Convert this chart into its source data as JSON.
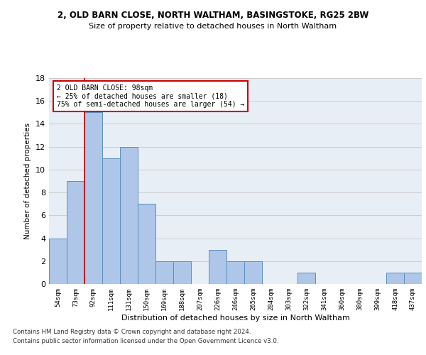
{
  "title": "2, OLD BARN CLOSE, NORTH WALTHAM, BASINGSTOKE, RG25 2BW",
  "subtitle": "Size of property relative to detached houses in North Waltham",
  "xlabel": "Distribution of detached houses by size in North Waltham",
  "ylabel": "Number of detached properties",
  "bar_labels": [
    "54sqm",
    "73sqm",
    "92sqm",
    "111sqm",
    "131sqm",
    "150sqm",
    "169sqm",
    "188sqm",
    "207sqm",
    "226sqm",
    "246sqm",
    "265sqm",
    "284sqm",
    "303sqm",
    "322sqm",
    "341sqm",
    "360sqm",
    "380sqm",
    "399sqm",
    "418sqm",
    "437sqm"
  ],
  "bar_values": [
    4,
    9,
    15,
    11,
    12,
    7,
    2,
    2,
    0,
    3,
    2,
    2,
    0,
    0,
    1,
    0,
    0,
    0,
    0,
    1,
    1
  ],
  "bar_color": "#aec6e8",
  "bar_edgecolor": "#5a8fc2",
  "vline_x": 1.5,
  "annotation_title": "2 OLD BARN CLOSE: 98sqm",
  "annotation_line1": "← 25% of detached houses are smaller (18)",
  "annotation_line2": "75% of semi-detached houses are larger (54) →",
  "annotation_box_color": "#ffffff",
  "annotation_box_edgecolor": "#cc0000",
  "vline_color": "#cc0000",
  "ylim": [
    0,
    18
  ],
  "yticks": [
    0,
    2,
    4,
    6,
    8,
    10,
    12,
    14,
    16,
    18
  ],
  "grid_color": "#cccccc",
  "bg_color": "#e8eef5",
  "footer1": "Contains HM Land Registry data © Crown copyright and database right 2024.",
  "footer2": "Contains public sector information licensed under the Open Government Licence v3.0."
}
